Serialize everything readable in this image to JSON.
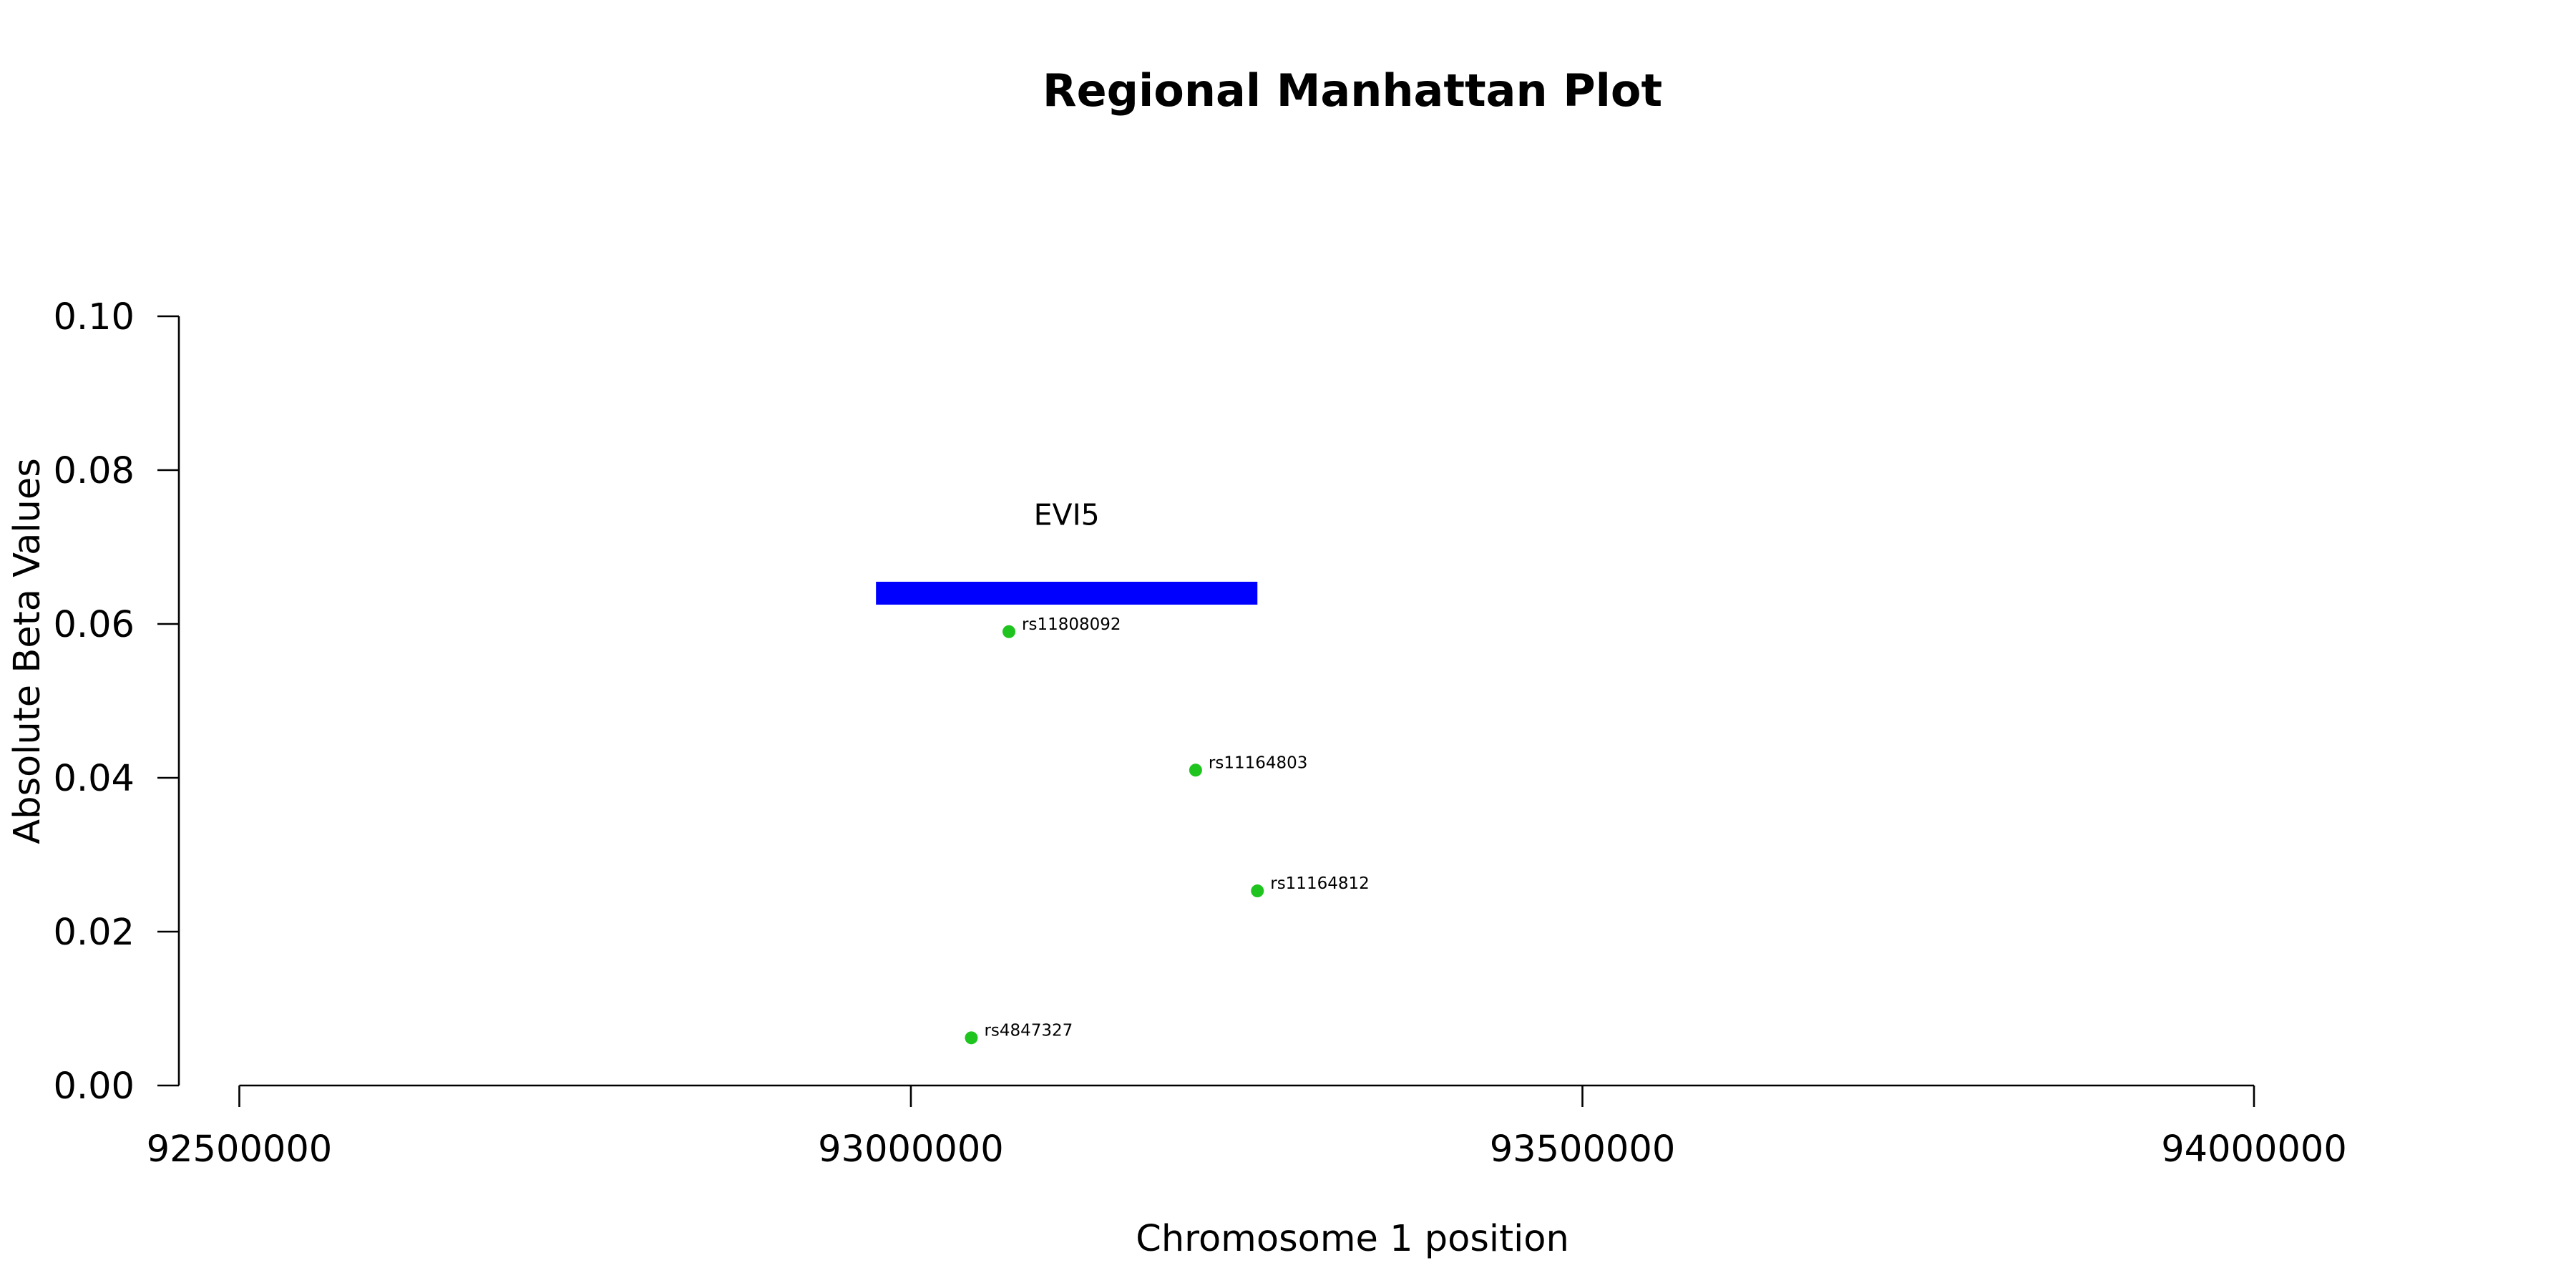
{
  "chart_data": {
    "type": "scatter",
    "title": "Regional Manhattan Plot",
    "xlabel": "Chromosome 1 position",
    "ylabel": "Absolute Beta Values",
    "xlim": [
      92455000,
      94000000
    ],
    "ylim": [
      0,
      0.1
    ],
    "x_ticks": [
      92500000,
      93000000,
      93500000,
      94000000
    ],
    "y_ticks": [
      0.0,
      0.02,
      0.04,
      0.06,
      0.08,
      0.1
    ],
    "x_tick_labels": [
      "92500000",
      "93000000",
      "93500000",
      "94000000"
    ],
    "y_tick_labels": [
      "0.00",
      "0.02",
      "0.04",
      "0.06",
      "0.08",
      "0.10"
    ],
    "point_color": "#1fc41f",
    "gene_color": "#0000ff",
    "grid": false,
    "gene": {
      "name": "EVI5",
      "start": 92974000,
      "end": 93258000,
      "y": 0.064,
      "label_y": 0.074
    },
    "points": [
      {
        "label": "rs11808092",
        "x": 93073000,
        "y": 0.059
      },
      {
        "label": "rs11164803",
        "x": 93212000,
        "y": 0.041
      },
      {
        "label": "rs11164812",
        "x": 93258000,
        "y": 0.0253
      },
      {
        "label": "rs4847327",
        "x": 93045000,
        "y": 0.0062
      }
    ]
  }
}
